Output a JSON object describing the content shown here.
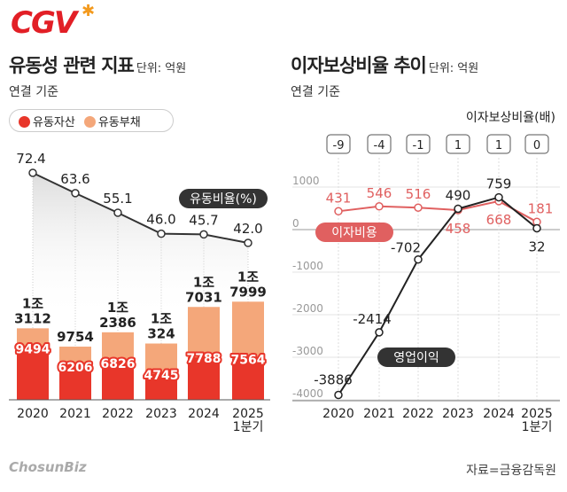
{
  "brand": {
    "logo": "CGV",
    "footer_logo": "ChosunBiz",
    "source": "자료=금융감독원"
  },
  "colors": {
    "asset": "#e8362a",
    "liability": "#f4a77a",
    "ratio_line": "#333333",
    "interest": "#e06060",
    "operating": "#222222"
  },
  "chart_data": [
    {
      "type": "bar",
      "title": "유동성 관련 지표",
      "unit": "단위: 억원",
      "subtitle": "연결 기준",
      "categories": [
        "2020",
        "2021",
        "2022",
        "2023",
        "2024",
        "2025\n1분기"
      ],
      "category_lines": [
        [
          "2020"
        ],
        [
          "2021"
        ],
        [
          "2022"
        ],
        [
          "2023"
        ],
        [
          "2024"
        ],
        [
          "2025",
          "1분기"
        ]
      ],
      "series": [
        {
          "name": "유동자산",
          "values": [
            9494,
            6206,
            6826,
            4745,
            7788,
            7564
          ],
          "labels": [
            "9494",
            "6206",
            "6826",
            "4745",
            "7788",
            "7564"
          ]
        },
        {
          "name": "유동부채",
          "values": [
            13112,
            9754,
            12386,
            10324,
            17031,
            17999
          ],
          "labels": [
            [
              "1조",
              "3112"
            ],
            [
              "9754"
            ],
            [
              "1조",
              "2386"
            ],
            [
              "1조",
              "324"
            ],
            [
              "1조",
              "7031"
            ],
            [
              "1조",
              "7999"
            ]
          ]
        }
      ],
      "line": {
        "name": "유동비율(%)",
        "values": [
          72.4,
          63.6,
          55.1,
          46.0,
          45.7,
          42.0
        ],
        "labels": [
          "72.4",
          "63.6",
          "55.1",
          "46.0",
          "45.7",
          "42.0"
        ]
      },
      "legend": "top-left"
    },
    {
      "type": "line",
      "title": "이자보상비율 추이",
      "unit": "단위: 억원",
      "subtitle": "연결 기준",
      "categories": [
        "2020",
        "2021",
        "2022",
        "2023",
        "2024",
        "2025\n1분기"
      ],
      "category_lines": [
        [
          "2020"
        ],
        [
          "2021"
        ],
        [
          "2022"
        ],
        [
          "2023"
        ],
        [
          "2024"
        ],
        [
          "2025",
          "1분기"
        ]
      ],
      "ylim": [
        -4000,
        1000
      ],
      "yticks": [
        "1000",
        "0",
        "-1000",
        "-2000",
        "-3000",
        "-4000"
      ],
      "ytick_values": [
        1000,
        0,
        -1000,
        -2000,
        -3000,
        -4000
      ],
      "grid": true,
      "ratio_label": "이자보상비율(배)",
      "ratio_values": [
        "-9",
        "-4",
        "-1",
        "1",
        "1",
        "0"
      ],
      "series": [
        {
          "name": "이자비용",
          "values": [
            431,
            546,
            516,
            458,
            668,
            181
          ],
          "labels": [
            "431",
            "546",
            "516",
            "458",
            "668",
            "181"
          ]
        },
        {
          "name": "영업이익",
          "values": [
            -3886,
            -2414,
            -702,
            490,
            759,
            32
          ],
          "labels": [
            "-3886",
            "-2414",
            "-702",
            "490",
            "759",
            "32"
          ]
        }
      ]
    }
  ]
}
